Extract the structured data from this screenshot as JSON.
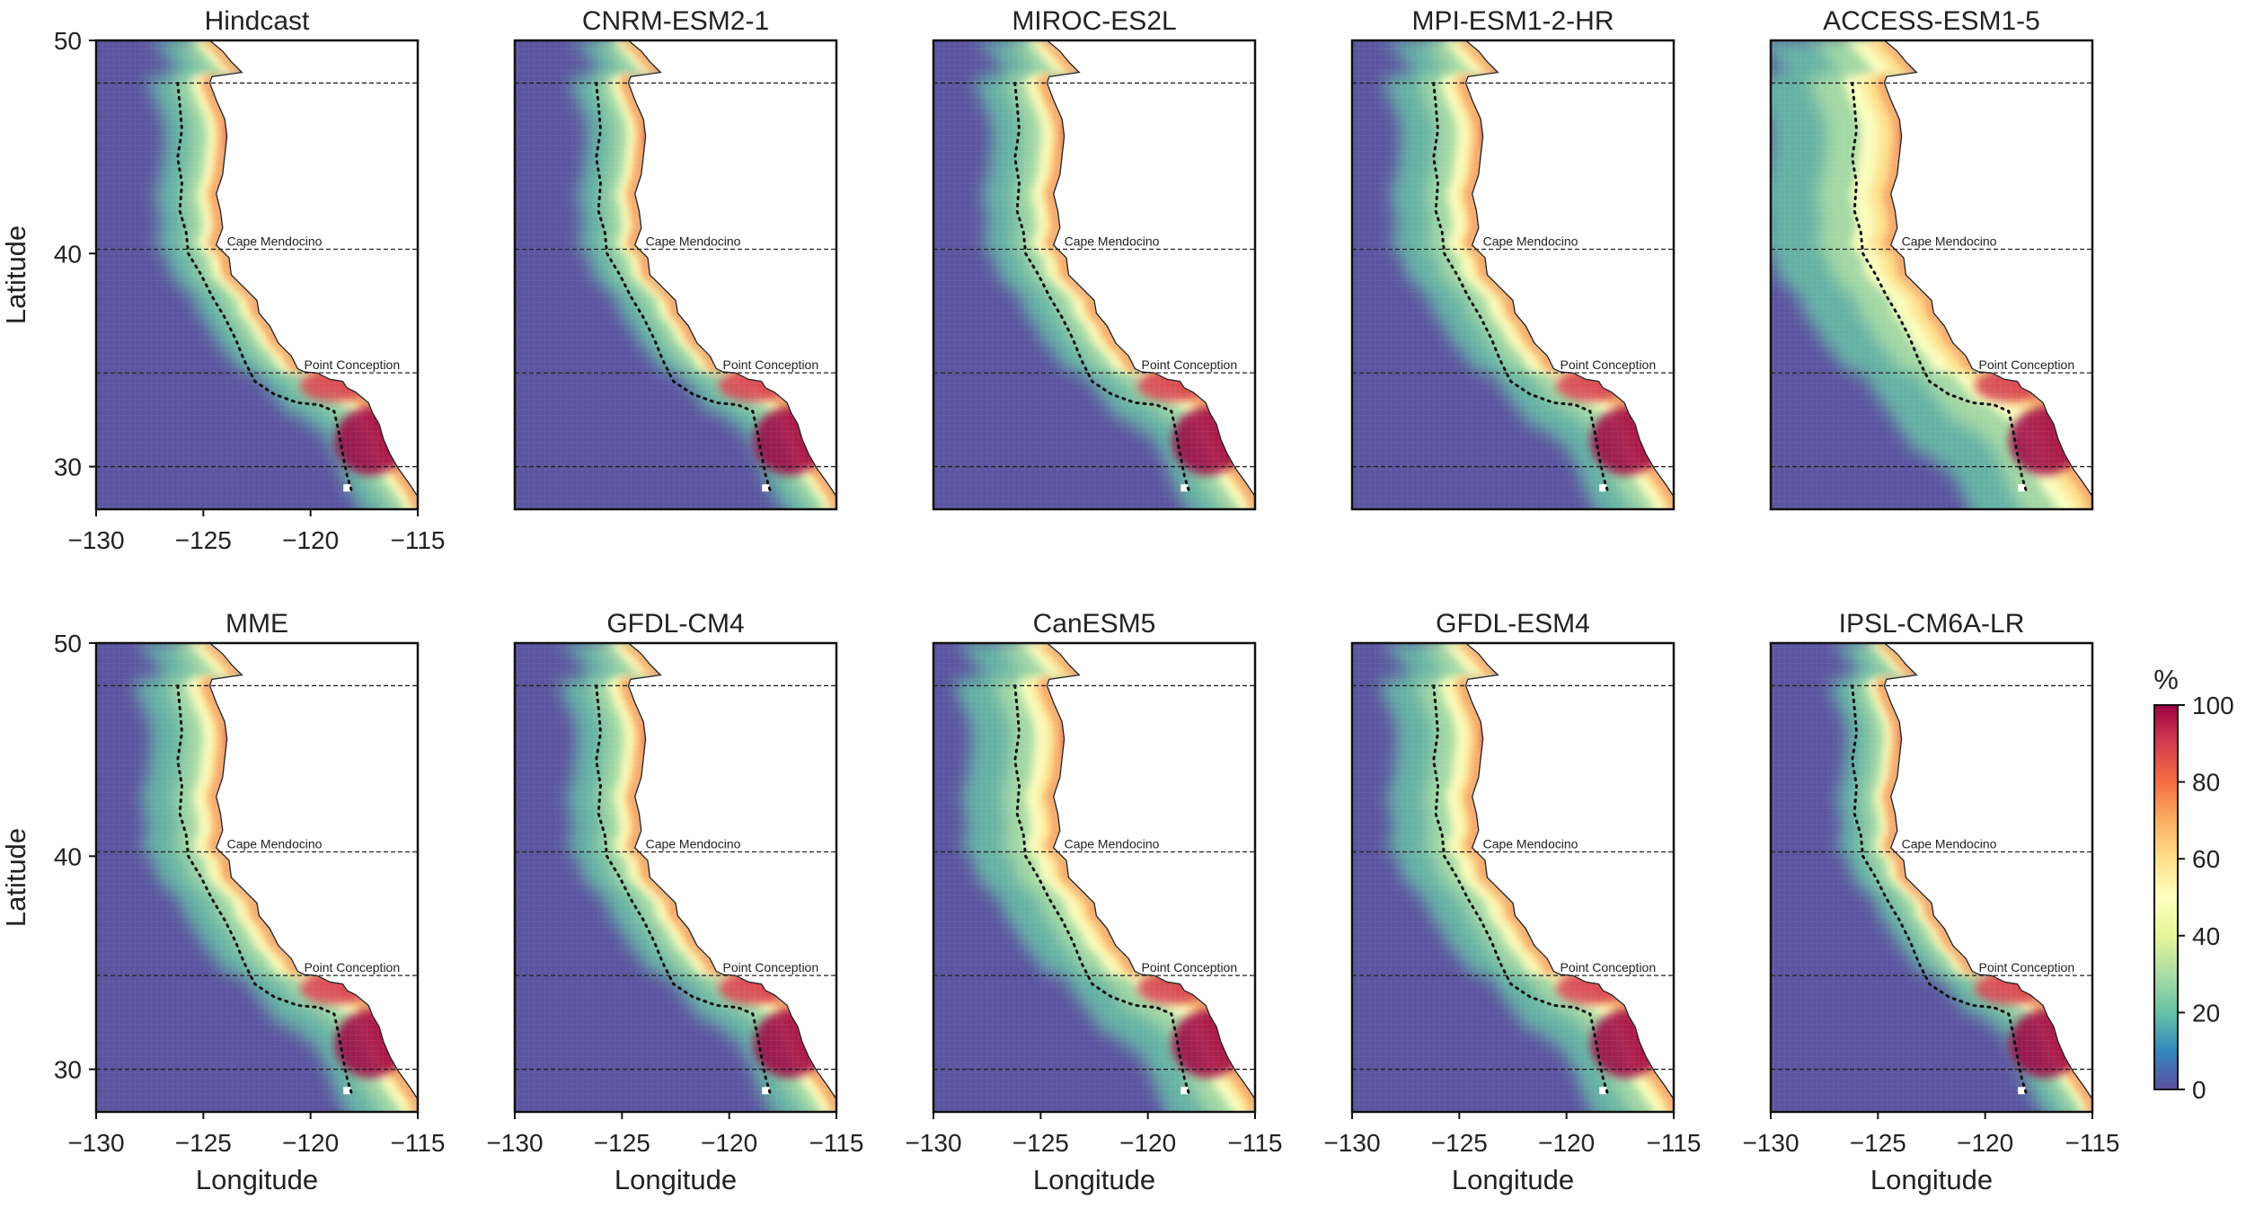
{
  "panels": [
    {
      "title": "Hindcast",
      "variant": "hindcast"
    },
    {
      "title": "CNRM-ESM2-1",
      "variant": "cnrm"
    },
    {
      "title": "MIROC-ES2L",
      "variant": "miroc"
    },
    {
      "title": "MPI-ESM1-2-HR",
      "variant": "mpi"
    },
    {
      "title": "ACCESS-ESM1-5",
      "variant": "access"
    },
    {
      "title": "MME",
      "variant": "mme"
    },
    {
      "title": "GFDL-CM4",
      "variant": "cm4"
    },
    {
      "title": "CanESM5",
      "variant": "canesm"
    },
    {
      "title": "GFDL-ESM4",
      "variant": "esm4"
    },
    {
      "title": "IPSL-CM6A-LR",
      "variant": "ipsl"
    }
  ],
  "axes": {
    "xlabel": "Longitude",
    "ylabel": "Latitude",
    "xticks": [
      -130,
      -125,
      -120,
      -115
    ],
    "xtick_labels": [
      "−130",
      "−125",
      "−120",
      "−115"
    ],
    "yticks": [
      30,
      40,
      50
    ],
    "ytick_labels": [
      "30",
      "40",
      "50"
    ],
    "xlim": [
      -130,
      -115
    ],
    "ylim": [
      28,
      50
    ]
  },
  "reference_lines": [
    {
      "lat": 48,
      "label": ""
    },
    {
      "lat": 40.2,
      "label": "Cape Mendocino"
    },
    {
      "lat": 34.4,
      "label": "Point Conception"
    },
    {
      "lat": 30,
      "label": ""
    }
  ],
  "colorbar": {
    "title": "%",
    "min": 0,
    "max": 100,
    "ticks": [
      "0",
      "20",
      "40",
      "60",
      "80",
      "100"
    ],
    "colormap": "Spectral_r",
    "stops": [
      "#5e4fa2",
      "#3288bd",
      "#66c2a5",
      "#abdda4",
      "#e6f598",
      "#ffffbf",
      "#fee08b",
      "#fdae61",
      "#f46d43",
      "#d53e4f",
      "#9e0142"
    ]
  },
  "colors": {
    "ocean_background": "#5b54a0",
    "land": "#ffffff",
    "coastline": "#222222",
    "frame": "#111111"
  }
}
